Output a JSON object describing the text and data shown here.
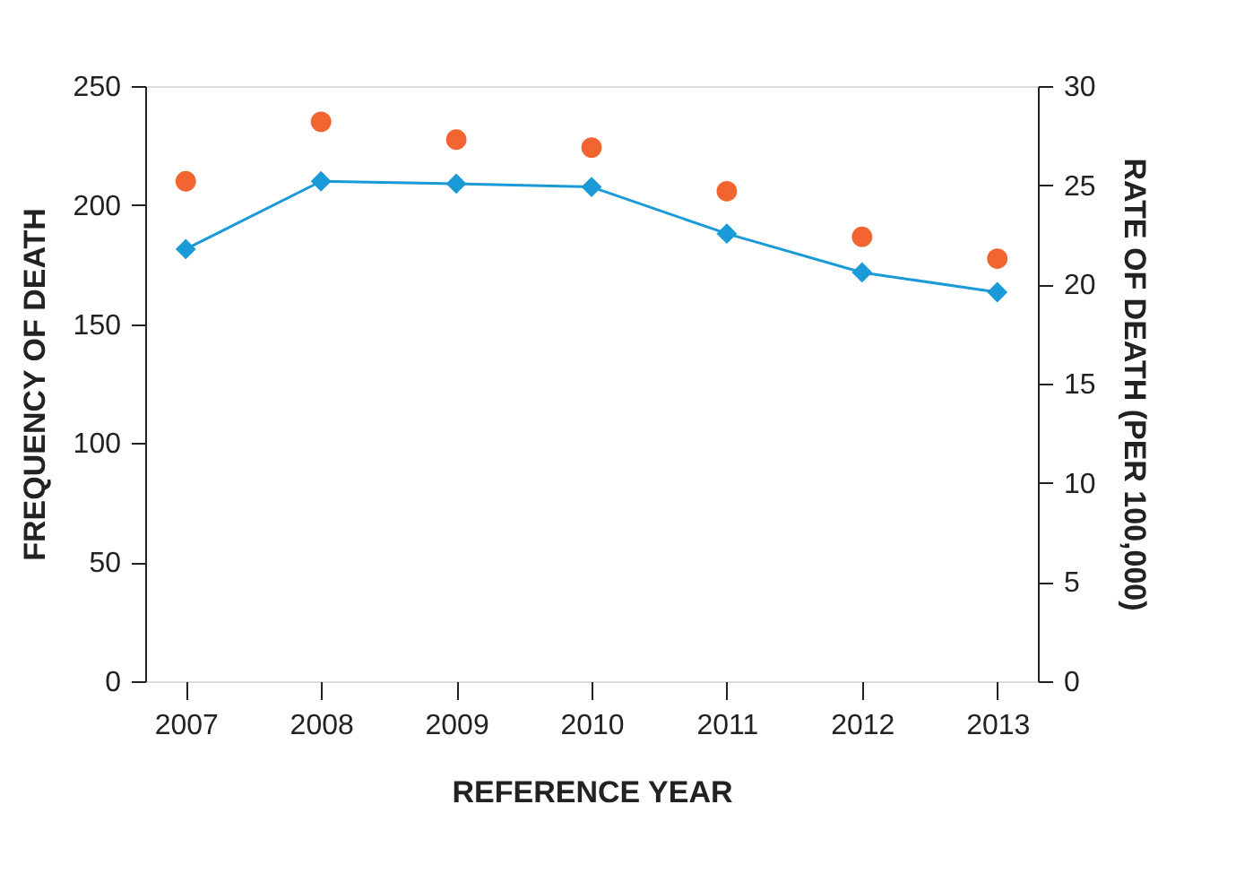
{
  "chart_data": {
    "type": "line",
    "xlabel": "REFERENCE YEAR",
    "ylabel": "FREQUENCY OF DEATH",
    "y2label": "RATE OF DEATH (PER 100,000)",
    "categories": [
      "2007",
      "2008",
      "2009",
      "2010",
      "2011",
      "2012",
      "2013"
    ],
    "series": [
      {
        "color": "#1a9ad6",
        "marker": "diamond",
        "line_style": "solid",
        "values": [
          181.5,
          210,
          209,
          207.6,
          188,
          171.7,
          163.4
        ]
      },
      {
        "type": "scatter",
        "axis": "y2",
        "color": "#f26430",
        "marker": "circle",
        "values": [
          25.2,
          28.2,
          27.3,
          26.9,
          24.7,
          22.4,
          21.3
        ]
      }
    ],
    "ylim": [
      0,
      250
    ],
    "yticks": [
      0,
      50,
      100,
      150,
      200,
      250
    ],
    "y2lim": [
      0,
      30
    ],
    "y2ticks": [
      0,
      5,
      10,
      15,
      20,
      25,
      30
    ],
    "grid": false
  }
}
